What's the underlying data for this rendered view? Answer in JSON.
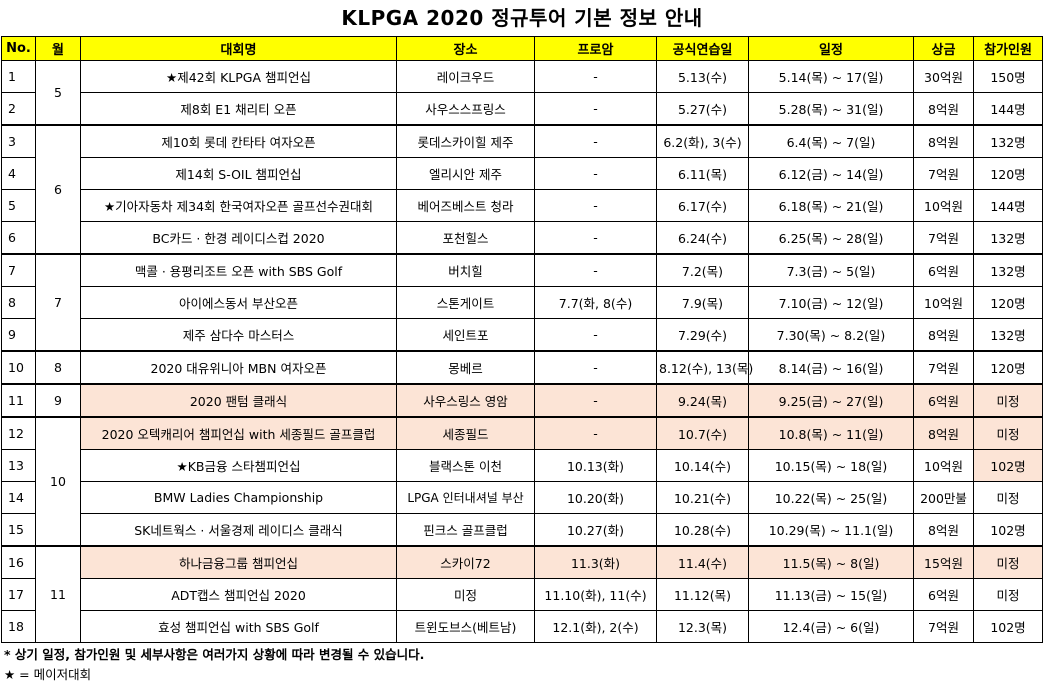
{
  "title": "KLPGA 2020 정규투어 기본 정보 안내",
  "headers": {
    "no": "No.",
    "month": "월",
    "name": "대회명",
    "venue": "장소",
    "proam": "프로암",
    "practice": "공식연습일",
    "schedule": "일정",
    "prize": "상금",
    "players": "참가인원"
  },
  "months": [
    "5",
    "6",
    "7",
    "8",
    "9",
    "10",
    "11"
  ],
  "rows": [
    {
      "no": "1",
      "name": "★제42회 KLPGA 챔피언십",
      "venue": "레이크우드",
      "proam": "-",
      "practice": "5.13(수)",
      "schedule": "5.14(목) ~ 17(일)",
      "prize": "30억원",
      "players": "150명"
    },
    {
      "no": "2",
      "name": "제8회 E1 채리티 오픈",
      "venue": "사우스스프링스",
      "proam": "-",
      "practice": "5.27(수)",
      "schedule": "5.28(목) ~ 31(일)",
      "prize": "8억원",
      "players": "144명"
    },
    {
      "no": "3",
      "name": "제10회 롯데 칸타타 여자오픈",
      "venue": "롯데스카이힐 제주",
      "proam": "-",
      "practice": "6.2(화), 3(수)",
      "schedule": "6.4(목) ~ 7(일)",
      "prize": "8억원",
      "players": "132명"
    },
    {
      "no": "4",
      "name": "제14회 S-OIL 챔피언십",
      "venue": "엘리시안 제주",
      "proam": "-",
      "practice": "6.11(목)",
      "schedule": "6.12(금) ~ 14(일)",
      "prize": "7억원",
      "players": "120명"
    },
    {
      "no": "5",
      "name": "★기아자동차 제34회 한국여자오픈 골프선수권대회",
      "venue": "베어즈베스트 청라",
      "proam": "-",
      "practice": "6.17(수)",
      "schedule": "6.18(목) ~ 21(일)",
      "prize": "10억원",
      "players": "144명"
    },
    {
      "no": "6",
      "name": "BC카드 · 한경 레이디스컵 2020",
      "venue": "포천힐스",
      "proam": "-",
      "practice": "6.24(수)",
      "schedule": "6.25(목) ~ 28(일)",
      "prize": "7억원",
      "players": "132명"
    },
    {
      "no": "7",
      "name": "맥콜 · 용평리조트 오픈 with SBS Golf",
      "venue": "버치힐",
      "proam": "-",
      "practice": "7.2(목)",
      "schedule": "7.3(금) ~ 5(일)",
      "prize": "6억원",
      "players": "132명"
    },
    {
      "no": "8",
      "name": "아이에스동서 부산오픈",
      "venue": "스톤게이트",
      "proam": "7.7(화, 8(수)",
      "practice": "7.9(목)",
      "schedule": "7.10(금) ~ 12(일)",
      "prize": "10억원",
      "players": "120명"
    },
    {
      "no": "9",
      "name": "제주 삼다수 마스터스",
      "venue": "세인트포",
      "proam": "-",
      "practice": "7.29(수)",
      "schedule": "7.30(목) ~ 8.2(일)",
      "prize": "8억원",
      "players": "132명"
    },
    {
      "no": "10",
      "name": "2020 대유위니아 MBN 여자오픈",
      "venue": "몽베르",
      "proam": "-",
      "practice": "8.12(수), 13(목)",
      "schedule": "8.14(금) ~ 16(일)",
      "prize": "7억원",
      "players": "120명"
    },
    {
      "no": "11",
      "name": "2020 팬텀 클래식",
      "venue": "사우스링스 영암",
      "proam": "-",
      "practice": "9.24(목)",
      "schedule": "9.25(금) ~ 27(일)",
      "prize": "6억원",
      "players": "미정"
    },
    {
      "no": "12",
      "name": "2020 오텍캐리어 챔피언십 with 세종필드 골프클럽",
      "venue": "세종필드",
      "proam": "-",
      "practice": "10.7(수)",
      "schedule": "10.8(목) ~ 11(일)",
      "prize": "8억원",
      "players": "미정"
    },
    {
      "no": "13",
      "name": "★KB금융 스타챔피언십",
      "venue": "블랙스톤 이천",
      "proam": "10.13(화)",
      "practice": "10.14(수)",
      "schedule": "10.15(목) ~ 18(일)",
      "prize": "10억원",
      "players": "102명"
    },
    {
      "no": "14",
      "name": "BMW Ladies Championship",
      "venue": "LPGA 인터내셔널 부산",
      "proam": "10.20(화)",
      "practice": "10.21(수)",
      "schedule": "10.22(목) ~ 25(일)",
      "prize": "200만불",
      "players": "미정"
    },
    {
      "no": "15",
      "name": "SK네트웍스 · 서울경제 레이디스 클래식",
      "venue": "핀크스 골프클럽",
      "proam": "10.27(화)",
      "practice": "10.28(수)",
      "schedule": "10.29(목) ~ 11.1(일)",
      "prize": "8억원",
      "players": "102명"
    },
    {
      "no": "16",
      "name": "하나금융그룹 챔피언십",
      "venue": "스카이72",
      "proam": "11.3(화)",
      "practice": "11.4(수)",
      "schedule": "11.5(목) ~ 8(일)",
      "prize": "15억원",
      "players": "미정"
    },
    {
      "no": "17",
      "name": "ADT캡스 챔피언십 2020",
      "venue": "미정",
      "proam": "11.10(화), 11(수)",
      "practice": "11.12(목)",
      "schedule": "11.13(금) ~ 15(일)",
      "prize": "6억원",
      "players": "미정"
    },
    {
      "no": "18",
      "name": "효성 챔피언십 with SBS Golf",
      "venue": "트윈도브스(베트남)",
      "proam": "12.1(화), 2(수)",
      "practice": "12.3(목)",
      "schedule": "12.4(금) ~ 6(일)",
      "prize": "7억원",
      "players": "102명"
    }
  ],
  "notes": {
    "note1": "* 상기 일정, 참가인원 및 세부사항은 여러가지 상황에 따라 변경될 수 있습니다.",
    "note2": "★ = 메이저대회"
  },
  "colors": {
    "header_bg": "#ffff00",
    "highlight_bg": "#fce4d6"
  }
}
